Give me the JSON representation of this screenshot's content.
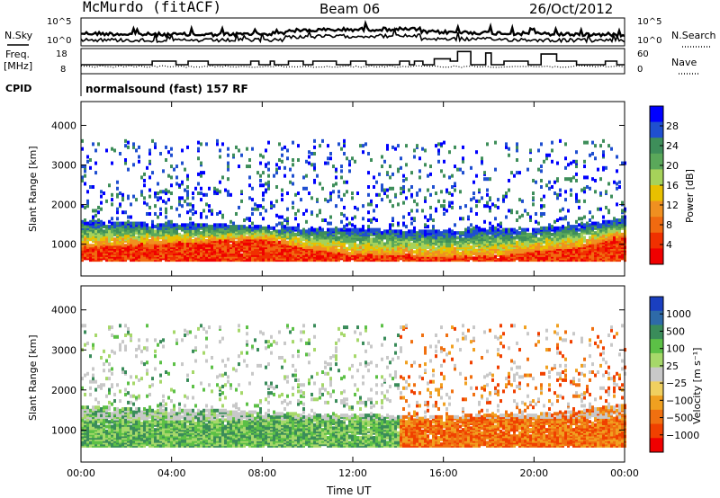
{
  "header": {
    "station": "McMurdo (fitACF)",
    "beam": "Beam 06",
    "date": "26/Oct/2012"
  },
  "strip_labels": {
    "nsky": "N.Sky",
    "nsearch": "N.Search",
    "freq_line1": "Freq.",
    "freq_line2": "[MHz]",
    "nave": "Nave",
    "cpid": "CPID",
    "cpid_text": "normalsound (fast) 157 RF"
  },
  "strip_ticks": {
    "noise_left": [
      "10^5",
      "10^0"
    ],
    "noise_right": [
      "10^5",
      "10^0"
    ],
    "freq_left": [
      "18",
      "8"
    ],
    "nave_right": [
      "60",
      "0"
    ]
  },
  "colors": {
    "power": [
      "#0000ff",
      "#1f4fd0",
      "#3e8e5a",
      "#5aa85a",
      "#a6d25a",
      "#e8c000",
      "#f09020",
      "#f06a10",
      "#f03000",
      "#f00000"
    ],
    "velocity": [
      "#f00000",
      "#f04000",
      "#f07010",
      "#f0a020",
      "#f0d060",
      "#c8c8c8",
      "#a6d86a",
      "#5cc046",
      "#3a8c5a",
      "#2e6aa8",
      "#1a3fc0"
    ]
  },
  "chart_data": [
    {
      "type": "heatmap",
      "title": "",
      "xlabel": "",
      "ylabel": "Slant Range [km]",
      "x_ticks": [
        "00:00",
        "04:00",
        "08:00",
        "12:00",
        "16:00",
        "20:00",
        "00:00"
      ],
      "y_ticks": [
        "1000",
        "2000",
        "3000",
        "4000"
      ],
      "ylim": [
        200,
        4600
      ],
      "colorbar": {
        "label": "Power [dB]",
        "ticks": [
          "4",
          "8",
          "12",
          "16",
          "20",
          "24",
          "28"
        ],
        "range": [
          0,
          30
        ]
      },
      "profile_hours": [
        0,
        2,
        4,
        6,
        8,
        10,
        12,
        14,
        16,
        18,
        20,
        22,
        24
      ],
      "near_echo_top_km": [
        1550,
        1500,
        1450,
        1450,
        1400,
        1350,
        1350,
        1300,
        1300,
        1350,
        1350,
        1450,
        1600
      ],
      "strong_echo_top_km": [
        900,
        950,
        1000,
        1050,
        1100,
        850,
        700,
        700,
        650,
        650,
        800,
        900,
        1200
      ]
    },
    {
      "type": "heatmap",
      "title": "",
      "xlabel": "Time UT",
      "ylabel": "Slant Range [km]",
      "x_ticks": [
        "00:00",
        "04:00",
        "08:00",
        "12:00",
        "16:00",
        "20:00",
        "00:00"
      ],
      "y_ticks": [
        "1000",
        "2000",
        "3000",
        "4000"
      ],
      "ylim": [
        200,
        4600
      ],
      "colorbar": {
        "label": "Velocity [m s⁻¹]",
        "ticks": [
          "1000",
          "500",
          "100",
          "25",
          "−25",
          "−100",
          "−500",
          "−1000"
        ],
        "range": [
          -1000,
          1000
        ]
      },
      "dominant_velocity_sign": [
        {
          "from_hour": 0,
          "to_hour": 14,
          "sign": "positive"
        },
        {
          "from_hour": 14,
          "to_hour": 24,
          "sign": "negative"
        }
      ]
    }
  ]
}
